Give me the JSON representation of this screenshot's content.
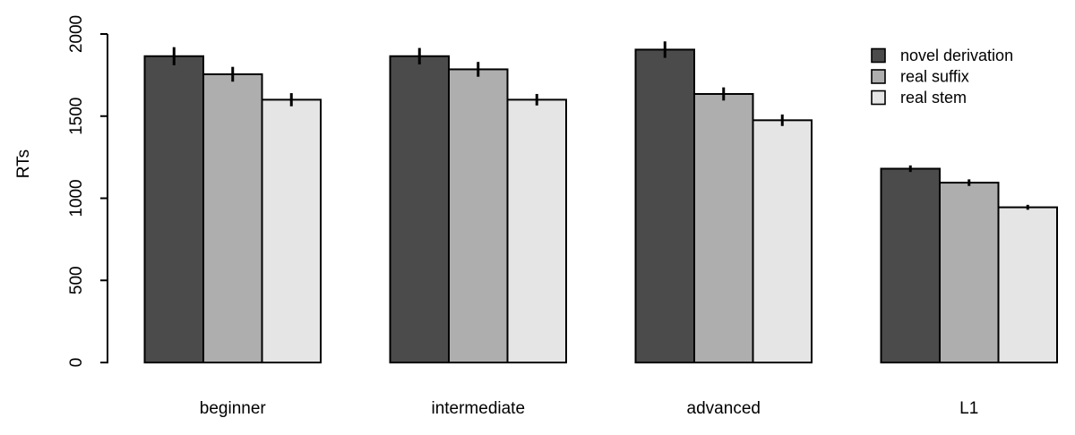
{
  "figure": {
    "background": "#ffffff"
  },
  "chart_data": {
    "type": "bar",
    "title": "",
    "xlabel": "",
    "ylabel": "RTs",
    "categories": [
      "beginner",
      "intermediate",
      "advanced",
      "L1"
    ],
    "series": [
      {
        "name": "novel derivation",
        "color": "#4b4b4b",
        "values": [
          1865,
          1865,
          1905,
          1180
        ],
        "errors": [
          55,
          50,
          50,
          20
        ]
      },
      {
        "name": "real suffix",
        "color": "#aeaeae",
        "values": [
          1755,
          1785,
          1635,
          1095
        ],
        "errors": [
          45,
          45,
          40,
          20
        ]
      },
      {
        "name": "real stem",
        "color": "#e5e5e5",
        "values": [
          1600,
          1600,
          1475,
          945
        ],
        "errors": [
          40,
          35,
          35,
          15
        ]
      }
    ],
    "ylim": [
      0,
      2000
    ],
    "yticks": [
      0,
      500,
      1000,
      1500,
      2000
    ],
    "grid": false,
    "legend_position": "top-right",
    "bar_border_color": "#000000",
    "error_bar_color": "#000000",
    "axis_color": "#000000"
  }
}
